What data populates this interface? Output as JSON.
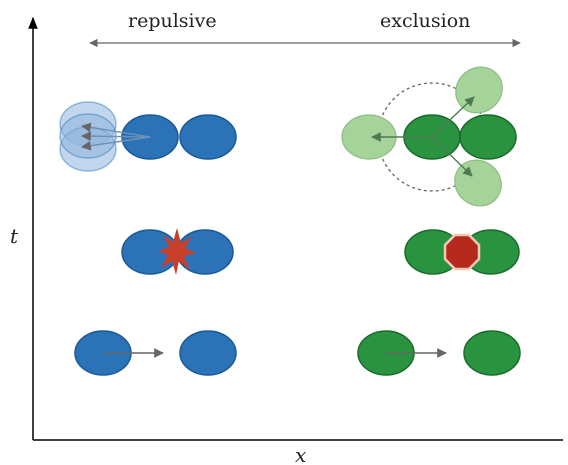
{
  "labels": {
    "left_panel": "repulsive",
    "right_panel": "exclusion",
    "x_axis": "x",
    "y_axis": "t"
  },
  "colors": {
    "blue_fill": "#2b73b6",
    "blue_stroke": "#1a5a98",
    "blue_ghost": "#8fb5df",
    "green_fill": "#2a9340",
    "green_stroke": "#1b6b2c",
    "green_ghost": "#a6d39a",
    "arrow": "#666666",
    "collision": "#c8402a",
    "stop_sign": "#b52a1c",
    "axis": "#000000"
  },
  "icons": {
    "collision": "burst-icon",
    "blocked": "stop-sign-icon"
  }
}
